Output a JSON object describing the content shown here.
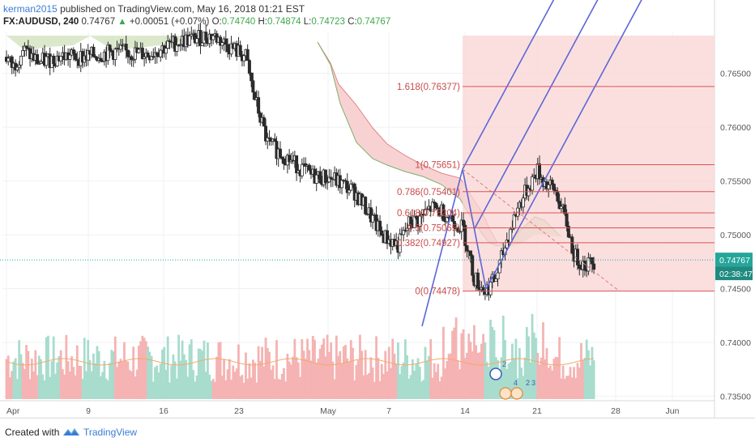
{
  "header": {
    "author": "kerman2015",
    "published": "published on TradingView.com, May 16, 2018 01:21 EST",
    "symbol": "FX:AUDUSD, 240",
    "last": "0.74767",
    "change_arrow": "▲",
    "change": "+0.00051 (+0.07%)",
    "o_label": "O:",
    "o": "0.74740",
    "h_label": "H:",
    "h": "0.74874",
    "l_label": "L:",
    "l": "0.74723",
    "c_label": "C:",
    "c": "0.74767"
  },
  "footer": {
    "created": "Created with",
    "brand": "TradingView"
  },
  "colors": {
    "up": "#26a69a",
    "down": "#ef5350",
    "candle_body": "#2b2b2b",
    "cloud_bear": "#f7caca",
    "cloud_bull": "#d8e6c6",
    "fib_line": "#d85454",
    "pitchfork": "#5b67d6",
    "price_tag": "#26a69a"
  },
  "chart_data": {
    "type": "candlestick",
    "symbol": "FX:AUDUSD",
    "timeframe": "240",
    "y_ticks": [
      "0.76500",
      "0.76000",
      "0.75500",
      "0.75000",
      "0.74500",
      "0.74000",
      "0.73500"
    ],
    "x_ticks": [
      "Apr",
      "9",
      "16",
      "23",
      "May",
      "7",
      "14",
      "21",
      "28",
      "Jun"
    ],
    "ylim": [
      0.7346,
      0.7688
    ],
    "last_price": "0.74767",
    "countdown": "02:38:47",
    "fib_levels": [
      {
        "label": "1.618(0.76377)",
        "value": 0.76377
      },
      {
        "label": "1(0.75651)",
        "value": 0.75651
      },
      {
        "label": "0.786(0.75401)",
        "value": 0.75401
      },
      {
        "label": "0.618(0.75204)",
        "value": 0.75204
      },
      {
        "label": "0.5(0.75065)",
        "value": 0.75065
      },
      {
        "label": "0.382(0.74927)",
        "value": 0.74927
      },
      {
        "label": "0(0.74478)",
        "value": 0.74478
      }
    ],
    "event_badges": [
      "2",
      "4",
      "2",
      "3"
    ],
    "grid": true
  }
}
